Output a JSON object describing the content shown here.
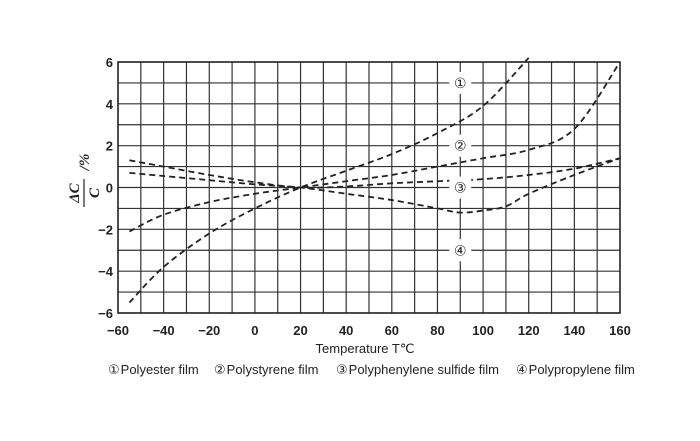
{
  "chart_data": {
    "type": "line",
    "xlabel": "Temperature T℃",
    "ylabel": {
      "numerator": "ΔC",
      "denominator": "C",
      "unit": "/%"
    },
    "xlim": [
      -60,
      160
    ],
    "ylim": [
      -6,
      6
    ],
    "xticks": [
      -60,
      -40,
      -20,
      0,
      20,
      40,
      60,
      80,
      100,
      120,
      140,
      160
    ],
    "yticks": [
      -6,
      -4,
      -2,
      0,
      2,
      4,
      6
    ],
    "x_gridlines": [
      -60,
      -50,
      -40,
      -30,
      -20,
      -10,
      0,
      10,
      20,
      30,
      40,
      50,
      60,
      70,
      80,
      90,
      100,
      110,
      120,
      130,
      140,
      150,
      160
    ],
    "y_gridlines": [
      -6,
      -5,
      -4,
      -3,
      -2,
      -1,
      0,
      1,
      2,
      3,
      4,
      5,
      6
    ],
    "grid": true,
    "series": [
      {
        "name": "Polyester film",
        "marker": "①",
        "marker_at": [
          90,
          5
        ],
        "x": [
          -55,
          -40,
          -20,
          0,
          20,
          40,
          60,
          80,
          100,
          120
        ],
        "y": [
          -5.5,
          -3.8,
          -2.2,
          -1.0,
          0.0,
          0.8,
          1.6,
          2.6,
          3.9,
          6.2
        ]
      },
      {
        "name": "Polystyrene film",
        "marker": "②",
        "marker_at": [
          90,
          2
        ],
        "x": [
          -55,
          -40,
          -20,
          0,
          20,
          40,
          60,
          80,
          100,
          120,
          140,
          160
        ],
        "y": [
          -2.1,
          -1.3,
          -0.7,
          -0.3,
          0.0,
          0.3,
          0.6,
          1.0,
          1.4,
          1.8,
          2.8,
          6.0
        ]
      },
      {
        "name": "Polyphenylene sulfide film",
        "marker": "③",
        "marker_at": [
          90,
          0
        ],
        "x": [
          -55,
          -40,
          -20,
          0,
          20,
          40,
          60,
          80,
          100,
          120,
          140,
          160
        ],
        "y": [
          1.3,
          1.0,
          0.6,
          0.25,
          0.0,
          0.05,
          0.2,
          0.3,
          0.4,
          0.6,
          0.9,
          1.4
        ]
      },
      {
        "name": "Polypropylene film",
        "marker": "④",
        "marker_at": [
          90,
          -3
        ],
        "x": [
          -55,
          -40,
          -20,
          0,
          20,
          40,
          60,
          80,
          90,
          100,
          110,
          120,
          140,
          160
        ],
        "y": [
          0.7,
          0.55,
          0.35,
          0.15,
          0.0,
          -0.3,
          -0.6,
          -1.0,
          -1.2,
          -1.1,
          -0.9,
          -0.3,
          0.6,
          1.4
        ]
      }
    ],
    "legend": {
      "placement": "bottom",
      "items": [
        {
          "marker": "①",
          "label": "Polyester film"
        },
        {
          "marker": "②",
          "label": "Polystyrene film"
        },
        {
          "marker": "③",
          "label": "Polyphenylene sulfide film"
        },
        {
          "marker": "④",
          "label": "Polypropylene film"
        }
      ]
    }
  }
}
